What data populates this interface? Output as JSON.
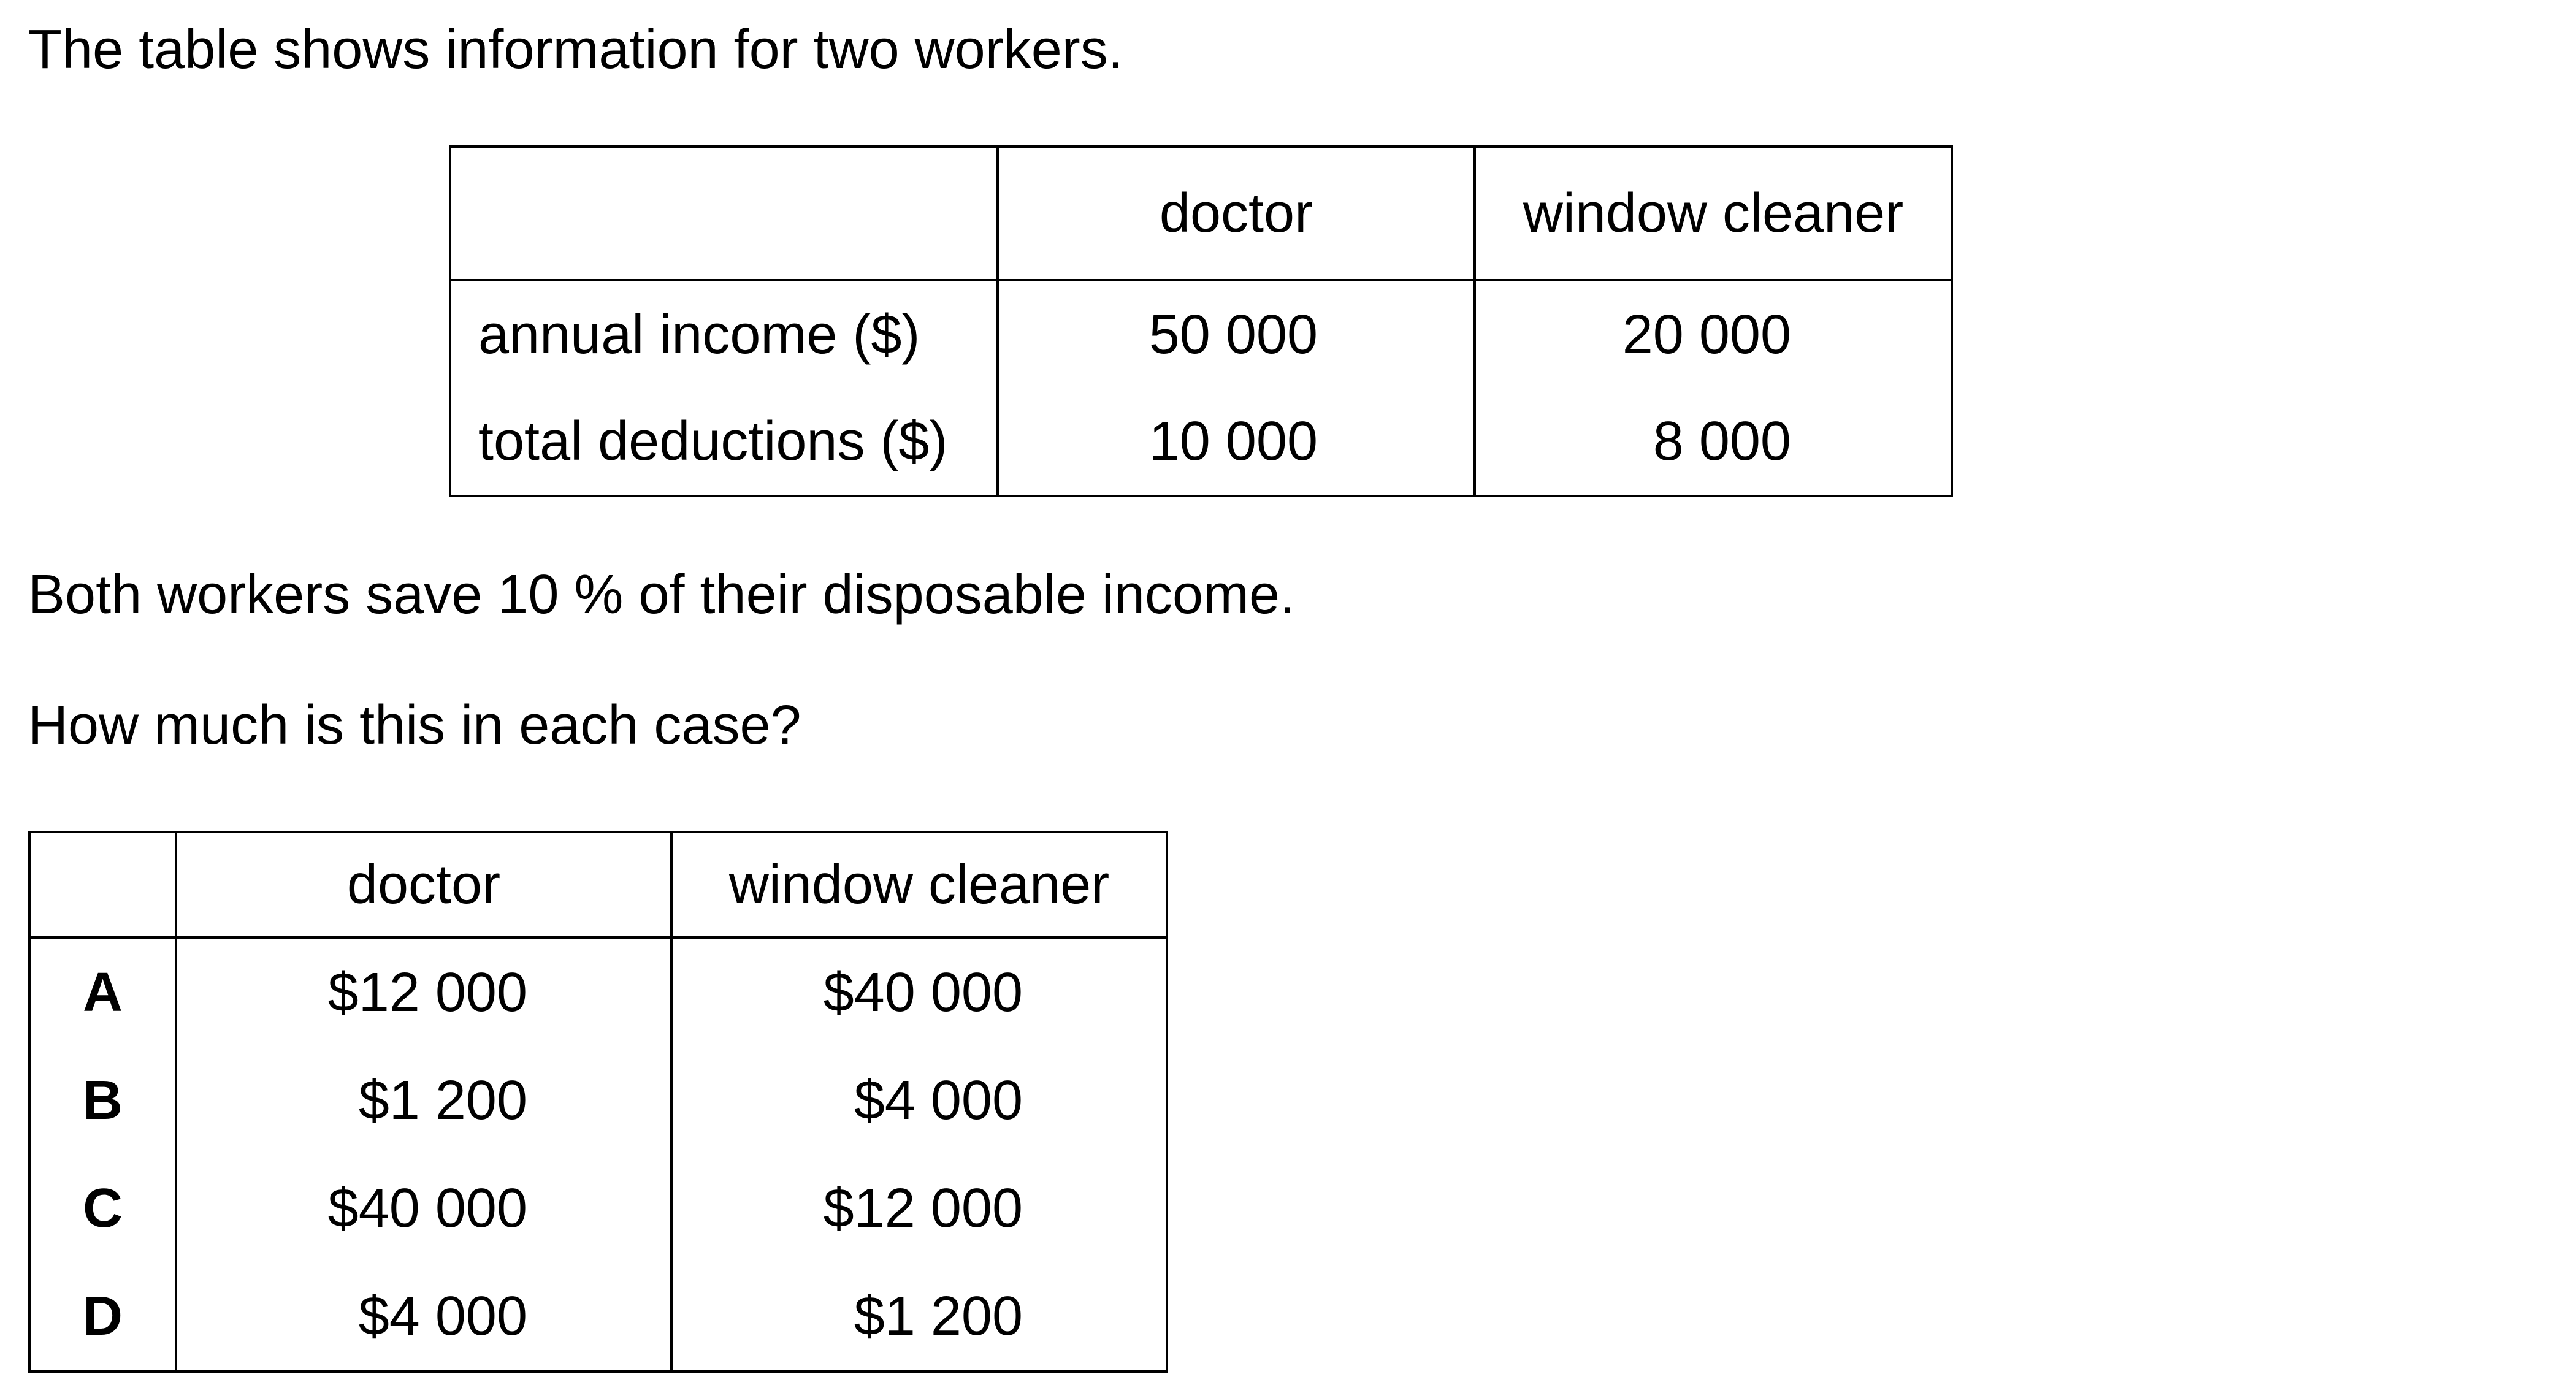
{
  "intro": "The table shows information for two workers.",
  "info_table": {
    "headers": [
      "",
      "doctor",
      "window cleaner"
    ],
    "rows": [
      {
        "label": "annual income ($)",
        "doctor": "50 000",
        "window_cleaner": "20 000"
      },
      {
        "label": "total deductions ($)",
        "doctor": "10 000",
        "window_cleaner": "8 000"
      }
    ]
  },
  "statement": "Both workers save 10 % of their disposable income.",
  "question": "How much is this in each case?",
  "options_table": {
    "headers": [
      "",
      "doctor",
      "window cleaner"
    ],
    "rows": [
      {
        "letter": "A",
        "doctor": "$12 000",
        "window_cleaner": "$40 000"
      },
      {
        "letter": "B",
        "doctor": "$1 200",
        "window_cleaner": "$4 000"
      },
      {
        "letter": "C",
        "doctor": "$40 000",
        "window_cleaner": "$12 000"
      },
      {
        "letter": "D",
        "doctor": "$4 000",
        "window_cleaner": "$1 200"
      }
    ]
  }
}
